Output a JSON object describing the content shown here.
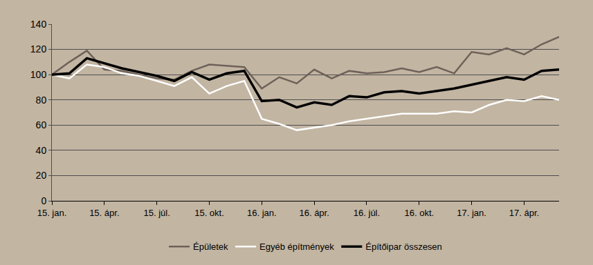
{
  "chart_data": {
    "type": "line",
    "categories": [
      "15. jan.",
      null,
      null,
      "15. ápr.",
      null,
      null,
      "15. júl.",
      null,
      null,
      "15. okt.",
      null,
      null,
      "16. jan.",
      null,
      null,
      "16. ápr.",
      null,
      null,
      "16. júl.",
      null,
      null,
      "16. okt.",
      null,
      null,
      "17. jan.",
      null,
      null,
      "17. ápr.",
      null,
      null
    ],
    "series": [
      {
        "name": "Épületek",
        "color": "#6e6159",
        "values": [
          100,
          110,
          119,
          104,
          103,
          100,
          97,
          96,
          103,
          108,
          107,
          106,
          89,
          98,
          93,
          104,
          97,
          103,
          101,
          102,
          105,
          102,
          106,
          101,
          118,
          116,
          121,
          116,
          124,
          130
        ]
      },
      {
        "name": "Egyéb építmények",
        "color": "#ffffff",
        "values": [
          100,
          97,
          108,
          106,
          101,
          99,
          95,
          91,
          98,
          85,
          91,
          95,
          65,
          61,
          56,
          58,
          60,
          63,
          65,
          67,
          69,
          69,
          69,
          71,
          70,
          76,
          80,
          79,
          83,
          80
        ]
      },
      {
        "name": "Építőipar összesen",
        "color": "#000000",
        "values": [
          100,
          101,
          113,
          109,
          105,
          102,
          99,
          95,
          102,
          96,
          101,
          103,
          79,
          80,
          74,
          78,
          76,
          83,
          82,
          86,
          87,
          85,
          87,
          89,
          92,
          95,
          98,
          96,
          103,
          104
        ]
      }
    ],
    "ylim": [
      0,
      140
    ],
    "yticks": [
      0,
      20,
      40,
      60,
      80,
      100,
      120,
      140
    ],
    "grid": true,
    "legend": "bottom"
  }
}
